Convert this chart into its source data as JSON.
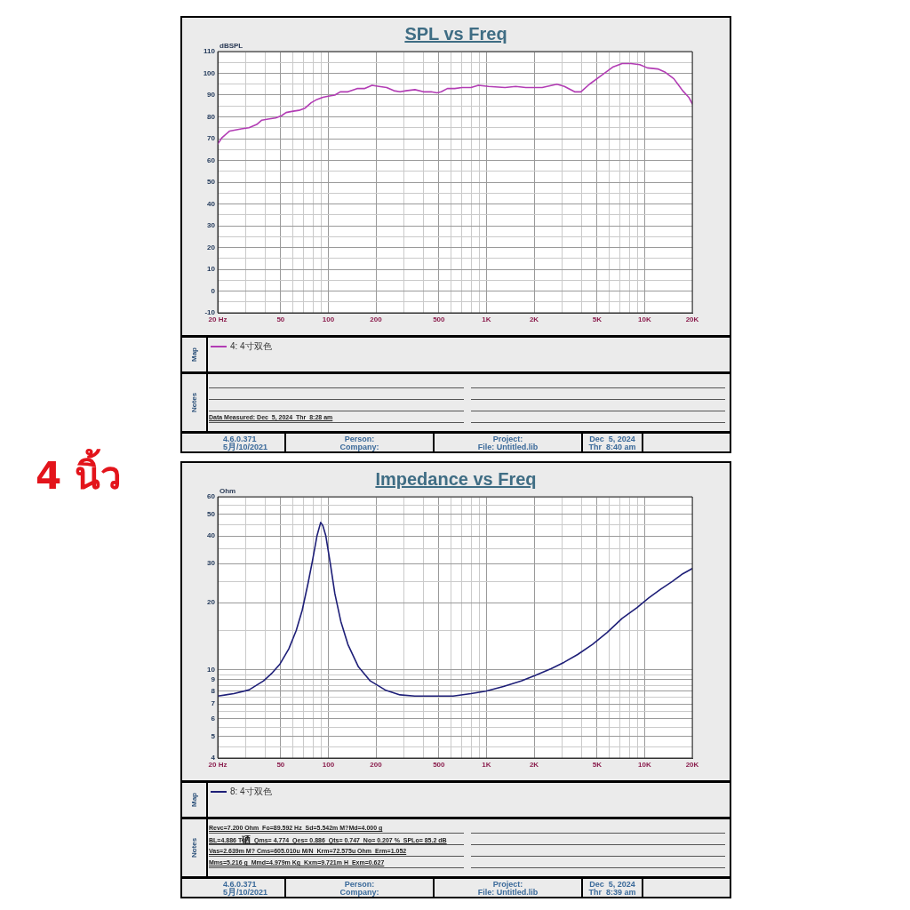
{
  "chart_data": [
    {
      "type": "line",
      "title": "SPL vs Freq",
      "ylabel": "dBSPL",
      "log": "x",
      "grid": true,
      "legend": "bottom",
      "marker": "none",
      "xlim": [
        20,
        20000
      ],
      "ylim": [
        -10,
        110
      ],
      "xticks": [
        {
          "value": 20,
          "label": "20 Hz"
        },
        {
          "value": 30,
          "label": null
        },
        {
          "value": 40,
          "label": null
        },
        50,
        {
          "value": 60,
          "label": null
        },
        {
          "value": 70,
          "label": null
        },
        {
          "value": 80,
          "label": null
        },
        {
          "value": 90,
          "label": null
        },
        100,
        200,
        {
          "value": 300,
          "label": null
        },
        {
          "value": 400,
          "label": null
        },
        500,
        {
          "value": 600,
          "label": null
        },
        {
          "value": 700,
          "label": null
        },
        {
          "value": 800,
          "label": null
        },
        {
          "value": 900,
          "label": null
        },
        {
          "value": 1000,
          "label": "1K"
        },
        {
          "value": 2000,
          "label": "2K"
        },
        {
          "value": 3000,
          "label": null
        },
        {
          "value": 4000,
          "label": null
        },
        {
          "value": 5000,
          "label": "5K"
        },
        {
          "value": 6000,
          "label": null
        },
        {
          "value": 7000,
          "label": null
        },
        {
          "value": 8000,
          "label": null
        },
        {
          "value": 9000,
          "label": null
        },
        {
          "value": 10000,
          "label": "10K"
        },
        {
          "value": 20000,
          "label": "20K"
        }
      ],
      "yticks": [
        -10,
        {
          "value": -5,
          "label": null
        },
        0,
        {
          "value": 5,
          "label": null
        },
        10,
        {
          "value": 15,
          "label": null
        },
        20,
        {
          "value": 25,
          "label": null
        },
        30,
        {
          "value": 35,
          "label": null
        },
        40,
        {
          "value": 45,
          "label": null
        },
        50,
        {
          "value": 55,
          "label": null
        },
        60,
        {
          "value": 65,
          "label": null
        },
        70,
        {
          "value": 75,
          "label": null
        },
        80,
        {
          "value": 85,
          "label": null
        },
        90,
        {
          "value": 95,
          "label": null
        },
        100,
        {
          "value": 105,
          "label": null
        },
        110
      ],
      "x": [
        20,
        21.3,
        23.8,
        25.9,
        28.2,
        31.5,
        35.3,
        38,
        41.6,
        46.4,
        50.6,
        54.1,
        58.8,
        65.3,
        71.3,
        77.9,
        84.8,
        92.4,
        100,
        110,
        119,
        133,
        152,
        169,
        189,
        209,
        234,
        260,
        284,
        310,
        353,
        400,
        447,
        487,
        518,
        566,
        630,
        700,
        798,
        889,
        1030,
        1310,
        1530,
        1770,
        2250,
        2790,
        3110,
        3610,
        3950,
        4480,
        5330,
        6330,
        7200,
        8190,
        9320,
        10400,
        12100,
        13500,
        15300,
        17400,
        19000,
        20000
      ],
      "series": [
        {
          "name": "4: 4寸双色",
          "color": "#b23cb4",
          "values": [
            67.5,
            70.5,
            73.5,
            74,
            74.5,
            75,
            76.5,
            78.5,
            79,
            79.5,
            80.5,
            82,
            82.5,
            83,
            84,
            86.5,
            88,
            89,
            89.5,
            90,
            91.5,
            91.5,
            93,
            93,
            94.5,
            94,
            93.5,
            92,
            91.5,
            92,
            92.5,
            91.5,
            91.5,
            91,
            91.5,
            93,
            93,
            93.5,
            93.5,
            94.5,
            94,
            93.5,
            94,
            93.5,
            93.5,
            95,
            94,
            91.5,
            91.5,
            95,
            99,
            103,
            104.5,
            104.5,
            104,
            102.5,
            102,
            100.5,
            97.5,
            92,
            89,
            86
          ]
        }
      ],
      "annotations": [
        "Map",
        "Notes",
        "Data Measured: Dec  5, 2024  Thr  8:28 am",
        "4.6.0.371",
        "5月/10/2021",
        "Person:",
        "Company:",
        "Project:",
        "File: Untitled.lib",
        "Dec  5, 2024",
        "Thr  8:40 am"
      ]
    },
    {
      "type": "other",
      "title": "4 นิ้ว",
      "color": "#e3141b"
    },
    {
      "type": "line",
      "title": "Impedance vs Freq",
      "ylabel": "Ohm",
      "log": "xy",
      "grid": true,
      "legend": "bottom",
      "marker": "none",
      "xlim": [
        20,
        20000
      ],
      "ylim": [
        4,
        60
      ],
      "xticks": [
        {
          "value": 20,
          "label": "20 Hz"
        },
        {
          "value": 30,
          "label": null
        },
        {
          "value": 40,
          "label": null
        },
        50,
        {
          "value": 60,
          "label": null
        },
        {
          "value": 70,
          "label": null
        },
        {
          "value": 80,
          "label": null
        },
        {
          "value": 90,
          "label": null
        },
        100,
        200,
        {
          "value": 300,
          "label": null
        },
        {
          "value": 400,
          "label": null
        },
        500,
        {
          "value": 600,
          "label": null
        },
        {
          "value": 700,
          "label": null
        },
        {
          "value": 800,
          "label": null
        },
        {
          "value": 900,
          "label": null
        },
        {
          "value": 1000,
          "label": "1K"
        },
        {
          "value": 2000,
          "label": "2K"
        },
        {
          "value": 3000,
          "label": null
        },
        {
          "value": 4000,
          "label": null
        },
        {
          "value": 5000,
          "label": "5K"
        },
        {
          "value": 6000,
          "label": null
        },
        {
          "value": 7000,
          "label": null
        },
        {
          "value": 8000,
          "label": null
        },
        {
          "value": 9000,
          "label": null
        },
        {
          "value": 10000,
          "label": "10K"
        },
        {
          "value": 20000,
          "label": "20K"
        }
      ],
      "yticks": [
        4,
        {
          "value": 4.5,
          "label": null
        },
        5,
        {
          "value": 5.5,
          "label": null
        },
        6,
        {
          "value": 6.5,
          "label": null
        },
        7,
        {
          "value": 7.5,
          "label": null
        },
        8,
        {
          "value": 8.5,
          "label": null
        },
        9,
        {
          "value": 9.5,
          "label": null
        },
        10,
        {
          "value": 15,
          "label": null
        },
        20,
        {
          "value": 25,
          "label": null
        },
        30,
        {
          "value": 35,
          "label": null
        },
        40,
        {
          "value": 45,
          "label": null
        },
        50,
        {
          "value": 55,
          "label": null
        },
        60
      ],
      "x": [
        20,
        25.3,
        31.5,
        39,
        44.4,
        49.5,
        56.3,
        62.7,
        68.4,
        74.5,
        79.5,
        84.8,
        89.5,
        92.4,
        96.5,
        103,
        110,
        120,
        133,
        155,
        184,
        229,
        284,
        352,
        456,
        616,
        798,
        991,
        1280,
        1660,
        2020,
        2560,
        3100,
        3770,
        4680,
        5800,
        7200,
        8930,
        10600,
        12600,
        15000,
        17400,
        20000
      ],
      "series": [
        {
          "name": "8: 4寸双色",
          "color": "#1e1f78",
          "values": [
            7.6,
            7.8,
            8.1,
            8.9,
            9.7,
            10.6,
            12.4,
            15,
            18.5,
            24.5,
            31,
            40,
            46,
            44.5,
            40,
            30,
            22,
            16.5,
            13,
            10.3,
            8.9,
            8.1,
            7.7,
            7.6,
            7.6,
            7.6,
            7.8,
            8,
            8.4,
            8.9,
            9.4,
            10.1,
            10.8,
            11.7,
            13,
            14.7,
            17,
            19,
            21,
            23,
            25,
            27,
            28.5
          ]
        }
      ],
      "annotations": [
        "Map",
        "Notes",
        "Revc=7.200 Ohm  Fo=89.592 Hz  Sd=5.542m M?Md=4.000 g",
        "BL=4.886 T硒  Qms= 4.774  Qes= 0.886  Qts= 0.747  No= 0.207 %  SPLo= 85.2 dB",
        "Vas=2.639m M? Cms=605.010u M/N  Krm=72.575u Ohm  Erm=1.052",
        "Mms=5.216 g  Mmd=4.979m Kg  Kxm=9.721m H  Exm=0.627",
        "4.6.0.371",
        "5月/10/2021",
        "Person:",
        "Company:",
        "Project:",
        "File: Untitled.lib",
        "Dec  5, 2024",
        "Thr  8:39 am"
      ]
    }
  ]
}
